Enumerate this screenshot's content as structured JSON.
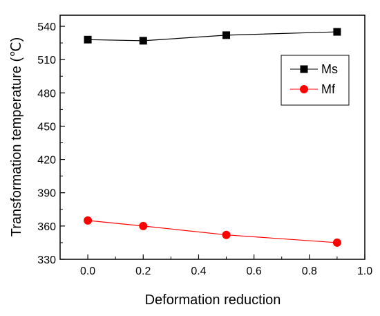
{
  "chart_data": {
    "type": "line",
    "title": "",
    "xlabel": "Deformation reduction",
    "ylabel": "Transformation temperature (℃)",
    "xlim": [
      -0.1,
      1.0
    ],
    "ylim": [
      330,
      550
    ],
    "xticks": [
      "0.0",
      "0.2",
      "0.4",
      "0.6",
      "0.8",
      "1.0"
    ],
    "yticks": [
      "330",
      "360",
      "390",
      "420",
      "450",
      "480",
      "510",
      "540"
    ],
    "grid": false,
    "legend_position": "top-right",
    "series": [
      {
        "name": "Ms",
        "color": "#000000",
        "marker": "square",
        "x": [
          0.0,
          0.2,
          0.5,
          0.9
        ],
        "y": [
          528,
          527,
          532,
          535
        ]
      },
      {
        "name": "Mf",
        "color": "#ff0000",
        "marker": "circle",
        "x": [
          0.0,
          0.2,
          0.5,
          0.9
        ],
        "y": [
          365,
          360,
          352,
          345
        ]
      }
    ]
  }
}
